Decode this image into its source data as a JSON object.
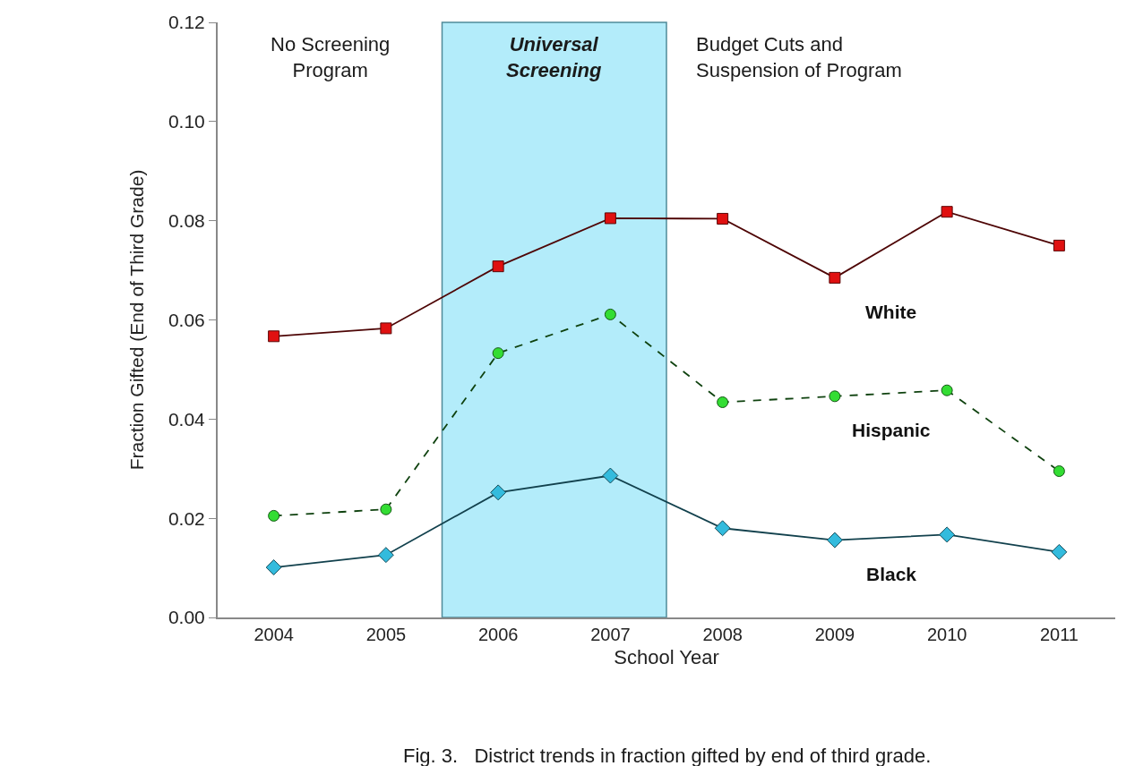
{
  "chart_data": {
    "type": "line",
    "xlabel": "School Year",
    "ylabel": "Fraction Gifted (End of Third Grade)",
    "x": [
      2004,
      2005,
      2006,
      2007,
      2008,
      2009,
      2010,
      2011
    ],
    "xlim": [
      2003.5,
      2011.5
    ],
    "xticks": [
      2004,
      2005,
      2006,
      2007,
      2008,
      2009,
      2010,
      2011
    ],
    "ylim": [
      0,
      0.12
    ],
    "yticks": [
      {
        "value": 0,
        "label": "0.00"
      },
      {
        "value": 0.02,
        "label": "0.02"
      },
      {
        "value": 0.04,
        "label": "0.04"
      },
      {
        "value": 0.06,
        "label": "0.06"
      },
      {
        "value": 0.08,
        "label": "0.08"
      },
      {
        "value": 0.1,
        "label": "0.10"
      },
      {
        "value": 0.12,
        "label": "0.12"
      }
    ],
    "grid": false,
    "legend": false,
    "series": [
      {
        "name": "White",
        "color": "#e01010",
        "marker": "square",
        "line_style": "solid",
        "values": [
          0.0567,
          0.0583,
          0.0708,
          0.0805,
          0.0804,
          0.0685,
          0.0818,
          0.075
        ]
      },
      {
        "name": "Hispanic",
        "color": "#33dd33",
        "marker": "circle",
        "line_style": "dashed",
        "values": [
          0.0205,
          0.0218,
          0.0533,
          0.0611,
          0.0434,
          0.0446,
          0.0458,
          0.0295
        ]
      },
      {
        "name": "Black",
        "color": "#33bbdd",
        "marker": "diamond",
        "line_style": "solid",
        "values": [
          0.0101,
          0.0126,
          0.0252,
          0.0286,
          0.018,
          0.0156,
          0.0167,
          0.0132
        ]
      }
    ],
    "bands": [
      {
        "axis": "x",
        "from": 2005.5,
        "to": 2007.5,
        "label": "Universal Screening",
        "color": "#b3ecfa"
      }
    ],
    "annotations": [
      "No Screening Program",
      "Budget Cuts and Suspension of Program",
      "Fig. 3.   District trends in fraction gifted by end of third grade."
    ]
  }
}
